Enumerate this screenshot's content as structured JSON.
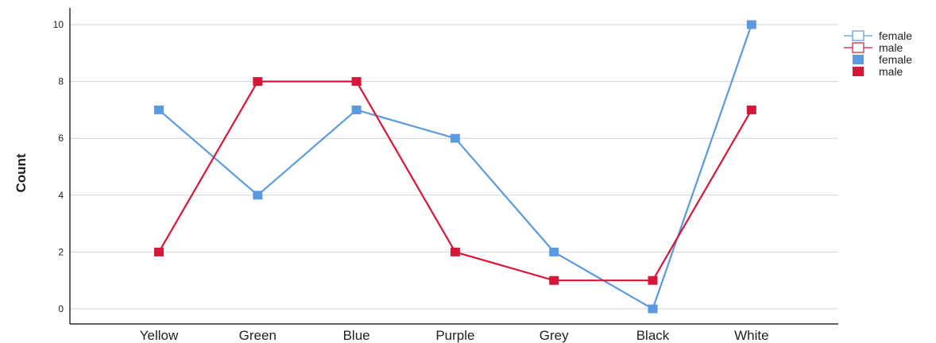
{
  "chart_data": {
    "type": "line",
    "categories": [
      "Yellow",
      "Green",
      "Blue",
      "Purple",
      "Grey",
      "Black",
      "White"
    ],
    "series": [
      {
        "name": "female",
        "values": [
          7,
          4,
          7,
          6,
          2,
          0,
          10
        ],
        "color": "#5b9ae0"
      },
      {
        "name": "male",
        "values": [
          2,
          8,
          8,
          2,
          1,
          1,
          7
        ],
        "color": "#d6173a"
      }
    ],
    "ylabel": "Count",
    "xlabel": "",
    "ylim": [
      0,
      10
    ],
    "yticks": [
      0,
      2,
      4,
      6,
      8,
      10
    ],
    "grid": true,
    "legend": {
      "placement": "top-right",
      "entries": [
        {
          "label": "female",
          "style": "line-hollow-marker",
          "color": "#5b9ae0"
        },
        {
          "label": "male",
          "style": "line-hollow-marker",
          "color": "#d6173a"
        },
        {
          "label": "female",
          "style": "filled-marker",
          "color": "#5b9ae0"
        },
        {
          "label": "male",
          "style": "filled-marker",
          "color": "#d6173a"
        }
      ]
    }
  }
}
